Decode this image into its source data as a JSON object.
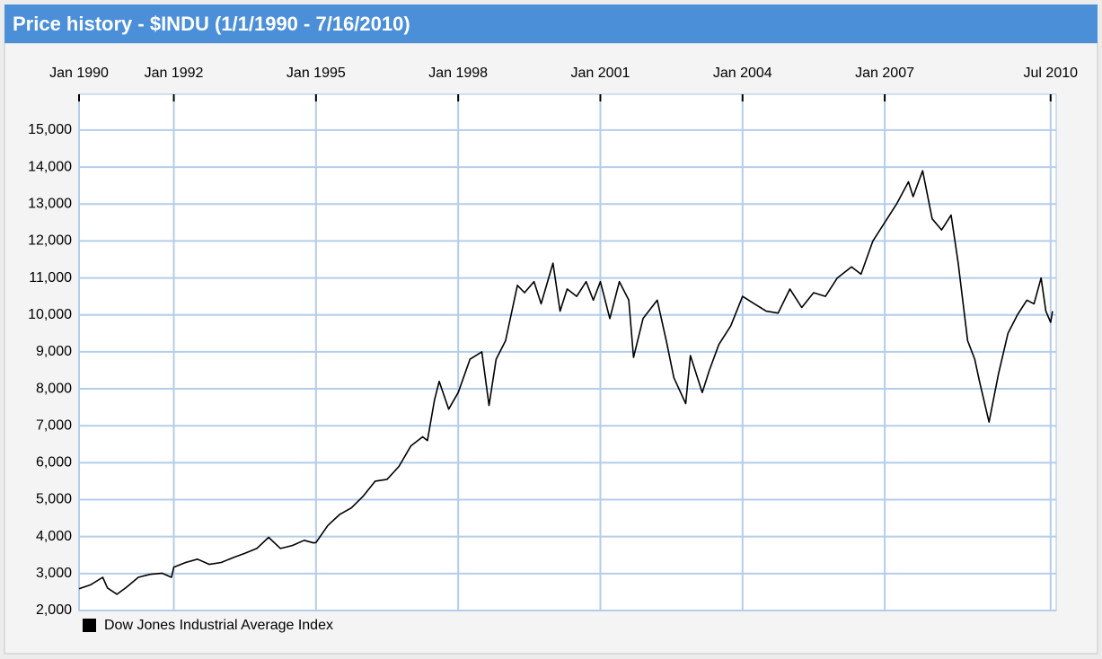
{
  "chart_data": {
    "type": "line",
    "title": "Price history - $INDU (1/1/1990 - 7/16/2010)",
    "x": [
      1990.0,
      1990.25,
      1990.5,
      1990.6,
      1990.8,
      1991.0,
      1991.25,
      1991.5,
      1991.75,
      1991.95,
      1992.0,
      1992.25,
      1992.5,
      1992.75,
      1993.0,
      1993.25,
      1993.5,
      1993.75,
      1994.0,
      1994.25,
      1994.5,
      1994.75,
      1994.95,
      1995.0,
      1995.25,
      1995.5,
      1995.75,
      1996.0,
      1996.25,
      1996.5,
      1996.75,
      1997.0,
      1997.25,
      1997.35,
      1997.5,
      1997.6,
      1997.8,
      1998.0,
      1998.25,
      1998.5,
      1998.65,
      1998.8,
      1999.0,
      1999.25,
      1999.4,
      1999.6,
      1999.75,
      2000.0,
      2000.15,
      2000.3,
      2000.5,
      2000.7,
      2000.85,
      2001.0,
      2001.2,
      2001.4,
      2001.6,
      2001.7,
      2001.9,
      2002.2,
      2002.4,
      2002.55,
      2002.8,
      2002.9,
      2003.15,
      2003.3,
      2003.5,
      2003.75,
      2004.0,
      2004.25,
      2004.5,
      2004.75,
      2005.0,
      2005.25,
      2005.5,
      2005.75,
      2006.0,
      2006.3,
      2006.5,
      2006.75,
      2007.0,
      2007.25,
      2007.5,
      2007.6,
      2007.8,
      2008.0,
      2008.2,
      2008.4,
      2008.55,
      2008.75,
      2008.9,
      2009.0,
      2009.2,
      2009.4,
      2009.6,
      2009.8,
      2010.0,
      2010.15,
      2010.3,
      2010.4,
      2010.5,
      2010.54
    ],
    "series": [
      {
        "name": "Dow Jones Industrial Average Index",
        "color": "#000000",
        "values": [
          2590,
          2700,
          2900,
          2610,
          2440,
          2630,
          2900,
          2980,
          3010,
          2900,
          3170,
          3300,
          3390,
          3250,
          3300,
          3430,
          3550,
          3680,
          3980,
          3680,
          3760,
          3900,
          3830,
          3840,
          4300,
          4600,
          4780,
          5100,
          5500,
          5550,
          5900,
          6450,
          6700,
          6600,
          7700,
          8200,
          7450,
          7900,
          8800,
          9000,
          7550,
          8800,
          9300,
          10800,
          10600,
          10900,
          10300,
          11400,
          10100,
          10700,
          10500,
          10900,
          10400,
          10900,
          9900,
          10900,
          10400,
          8850,
          9900,
          10400,
          9250,
          8300,
          7600,
          8900,
          7900,
          8500,
          9200,
          9700,
          10500,
          10300,
          10100,
          10050,
          10700,
          10200,
          10600,
          10500,
          11000,
          11300,
          11100,
          12000,
          12500,
          13000,
          13600,
          13200,
          13900,
          12600,
          12300,
          12700,
          11400,
          9300,
          8800,
          8200,
          7100,
          8400,
          9500,
          10000,
          10400,
          10300,
          11000,
          10100,
          9800,
          10100
        ]
      }
    ],
    "xlim": [
      1990,
      2010.58
    ],
    "xticks": [
      {
        "value": 1990,
        "label": "Jan 1990"
      },
      {
        "value": 1992,
        "label": "Jan 1992"
      },
      {
        "value": 1995,
        "label": "Jan 1995"
      },
      {
        "value": 1998,
        "label": "Jan 1998"
      },
      {
        "value": 2001,
        "label": "Jan 2001"
      },
      {
        "value": 2004,
        "label": "Jan 2004"
      },
      {
        "value": 2007,
        "label": "Jan 2007"
      },
      {
        "value": 2010.5,
        "label": "Jul 2010"
      }
    ],
    "ylim": [
      2000,
      15970
    ],
    "yticks": [
      {
        "value": 2000,
        "label": "2,000"
      },
      {
        "value": 3000,
        "label": "3,000"
      },
      {
        "value": 4000,
        "label": "4,000"
      },
      {
        "value": 5000,
        "label": "5,000"
      },
      {
        "value": 6000,
        "label": "6,000"
      },
      {
        "value": 7000,
        "label": "7,000"
      },
      {
        "value": 8000,
        "label": "8,000"
      },
      {
        "value": 9000,
        "label": "9,000"
      },
      {
        "value": 10000,
        "label": "10,000"
      },
      {
        "value": 11000,
        "label": "11,000"
      },
      {
        "value": 12000,
        "label": "12,000"
      },
      {
        "value": 13000,
        "label": "13,000"
      },
      {
        "value": 14000,
        "label": "14,000"
      },
      {
        "value": 15000,
        "label": "15,000"
      }
    ],
    "grid": true
  }
}
